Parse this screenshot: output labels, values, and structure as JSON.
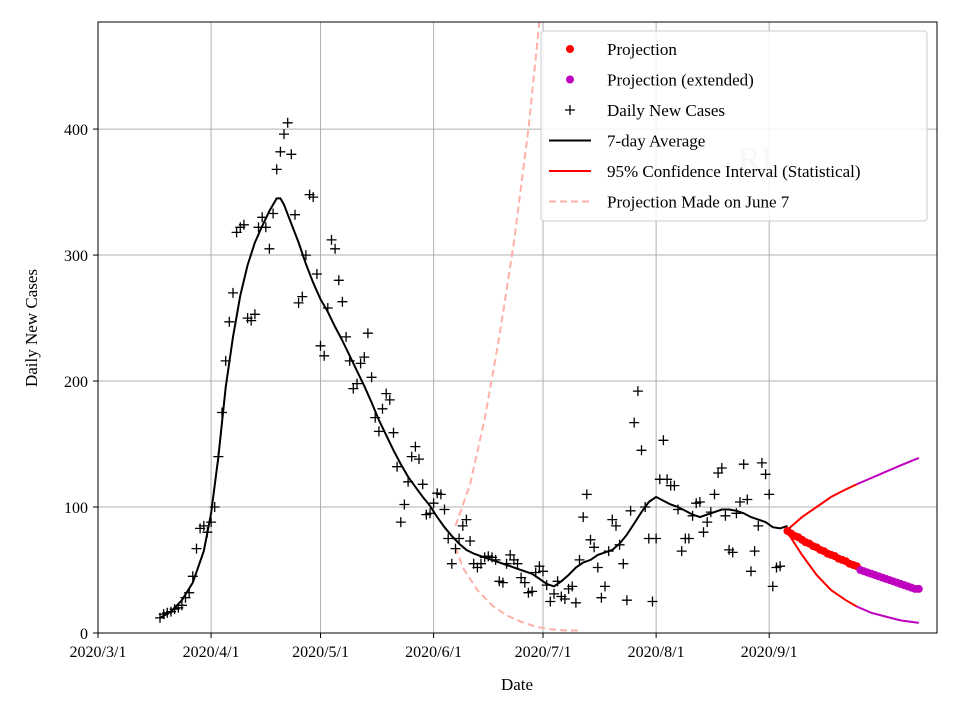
{
  "chart_data": {
    "type": "line",
    "title": "",
    "xlabel": "Date",
    "ylabel": "Daily New Cases",
    "watermark": "RI",
    "grid": true,
    "legend_position": "top-right",
    "x_units": "days since 2020-03-01",
    "xlim": [
      0,
      230
    ],
    "ylim": [
      0,
      485
    ],
    "x_ticks": [
      {
        "x": 0,
        "label": "2020/3/1"
      },
      {
        "x": 31,
        "label": "2020/4/1"
      },
      {
        "x": 61,
        "label": "2020/5/1"
      },
      {
        "x": 92,
        "label": "2020/6/1"
      },
      {
        "x": 122,
        "label": "2020/7/1"
      },
      {
        "x": 153,
        "label": "2020/8/1"
      },
      {
        "x": 184,
        "label": "2020/9/1"
      }
    ],
    "y_ticks": [
      {
        "y": 0,
        "label": "0"
      },
      {
        "y": 100,
        "label": "100"
      },
      {
        "y": 200,
        "label": "200"
      },
      {
        "y": 300,
        "label": "300"
      },
      {
        "y": 400,
        "label": "400"
      }
    ],
    "colors": {
      "projection": "#ff0000",
      "projection_extended": "#bf00bf",
      "daily": "#000000",
      "average": "#000000",
      "ci": "#ff0000",
      "ci_extended": "#bf00bf",
      "june7": "#ffb0a8",
      "grid": "#b0b0b0"
    },
    "legend": [
      {
        "key": "projection",
        "label": "Projection"
      },
      {
        "key": "projection_extended",
        "label": "Projection (extended)"
      },
      {
        "key": "daily",
        "label": "Daily New Cases"
      },
      {
        "key": "average",
        "label": "7-day Average"
      },
      {
        "key": "ci",
        "label": "95% Confidence Interval (Statistical)"
      },
      {
        "key": "june7",
        "label": "Projection Made on June 7"
      }
    ],
    "series": {
      "daily_new_cases": [
        [
          17,
          12
        ],
        [
          18,
          15
        ],
        [
          19,
          16
        ],
        [
          20,
          17
        ],
        [
          21,
          19
        ],
        [
          22,
          20
        ],
        [
          23,
          22
        ],
        [
          24,
          28
        ],
        [
          25,
          32
        ],
        [
          26,
          45
        ],
        [
          27,
          67
        ],
        [
          28,
          83
        ],
        [
          29,
          85
        ],
        [
          30,
          80
        ],
        [
          31,
          88
        ],
        [
          32,
          100
        ],
        [
          33,
          140
        ],
        [
          34,
          175
        ],
        [
          35,
          216
        ],
        [
          36,
          247
        ],
        [
          37,
          270
        ],
        [
          38,
          318
        ],
        [
          39,
          322
        ],
        [
          40,
          324
        ],
        [
          41,
          250
        ],
        [
          42,
          248
        ],
        [
          43,
          253
        ],
        [
          44,
          322
        ],
        [
          45,
          330
        ],
        [
          46,
          322
        ],
        [
          47,
          305
        ],
        [
          48,
          333
        ],
        [
          49,
          368
        ],
        [
          50,
          382
        ],
        [
          51,
          396
        ],
        [
          52,
          405
        ],
        [
          53,
          380
        ],
        [
          54,
          332
        ],
        [
          55,
          262
        ],
        [
          56,
          267
        ],
        [
          57,
          300
        ],
        [
          58,
          348
        ],
        [
          59,
          346
        ],
        [
          60,
          285
        ],
        [
          61,
          228
        ],
        [
          62,
          220
        ],
        [
          63,
          258
        ],
        [
          64,
          312
        ],
        [
          65,
          305
        ],
        [
          66,
          280
        ],
        [
          67,
          263
        ],
        [
          68,
          235
        ],
        [
          69,
          216
        ],
        [
          70,
          194
        ],
        [
          71,
          198
        ],
        [
          72,
          214
        ],
        [
          73,
          219
        ],
        [
          74,
          238
        ],
        [
          75,
          203
        ],
        [
          76,
          171
        ],
        [
          77,
          160
        ],
        [
          78,
          178
        ],
        [
          79,
          190
        ],
        [
          80,
          185
        ],
        [
          81,
          159
        ],
        [
          82,
          132
        ],
        [
          83,
          88
        ],
        [
          84,
          102
        ],
        [
          85,
          120
        ],
        [
          86,
          140
        ],
        [
          87,
          148
        ],
        [
          88,
          138
        ],
        [
          89,
          118
        ],
        [
          90,
          94
        ],
        [
          91,
          95
        ],
        [
          92,
          103
        ],
        [
          93,
          111
        ],
        [
          94,
          110
        ],
        [
          95,
          98
        ],
        [
          96,
          75
        ],
        [
          97,
          55
        ],
        [
          98,
          67
        ],
        [
          99,
          75
        ],
        [
          100,
          85
        ],
        [
          101,
          90
        ],
        [
          102,
          73
        ],
        [
          103,
          55
        ],
        [
          104,
          52
        ],
        [
          105,
          55
        ],
        [
          106,
          60
        ],
        [
          107,
          61
        ],
        [
          108,
          60
        ],
        [
          109,
          58
        ],
        [
          110,
          41
        ],
        [
          111,
          40
        ],
        [
          112,
          55
        ],
        [
          113,
          62
        ],
        [
          114,
          58
        ],
        [
          115,
          55
        ],
        [
          116,
          44
        ],
        [
          117,
          40
        ],
        [
          118,
          32
        ],
        [
          119,
          33
        ],
        [
          120,
          48
        ],
        [
          121,
          53
        ],
        [
          122,
          49
        ],
        [
          123,
          38
        ],
        [
          124,
          25
        ],
        [
          125,
          31
        ],
        [
          126,
          41
        ],
        [
          127,
          29
        ],
        [
          128,
          27
        ],
        [
          129,
          35
        ],
        [
          130,
          37
        ],
        [
          131,
          24
        ],
        [
          132,
          58
        ],
        [
          133,
          92
        ],
        [
          134,
          110
        ],
        [
          135,
          74
        ],
        [
          136,
          68
        ],
        [
          137,
          52
        ],
        [
          138,
          28
        ],
        [
          139,
          37
        ],
        [
          140,
          65
        ],
        [
          141,
          90
        ],
        [
          142,
          85
        ],
        [
          143,
          70
        ],
        [
          144,
          55
        ],
        [
          145,
          26
        ],
        [
          146,
          97
        ],
        [
          147,
          167
        ],
        [
          148,
          192
        ],
        [
          149,
          145
        ],
        [
          150,
          100
        ],
        [
          151,
          75
        ],
        [
          152,
          25
        ],
        [
          153,
          75
        ],
        [
          154,
          122
        ],
        [
          155,
          153
        ],
        [
          156,
          122
        ],
        [
          157,
          117
        ],
        [
          158,
          117
        ],
        [
          159,
          98
        ],
        [
          160,
          65
        ],
        [
          161,
          75
        ],
        [
          162,
          75
        ],
        [
          163,
          93
        ],
        [
          164,
          103
        ],
        [
          165,
          104
        ],
        [
          166,
          80
        ],
        [
          167,
          88
        ],
        [
          168,
          96
        ],
        [
          169,
          110
        ],
        [
          170,
          127
        ],
        [
          171,
          131
        ],
        [
          172,
          93
        ],
        [
          173,
          66
        ],
        [
          174,
          64
        ],
        [
          175,
          95
        ],
        [
          176,
          104
        ],
        [
          177,
          134
        ],
        [
          178,
          106
        ],
        [
          179,
          49
        ],
        [
          180,
          65
        ],
        [
          181,
          85
        ],
        [
          182,
          135
        ],
        [
          183,
          126
        ],
        [
          184,
          110
        ],
        [
          185,
          37
        ],
        [
          186,
          52
        ],
        [
          187,
          53
        ]
      ],
      "seven_day_average": [
        [
          17,
          12
        ],
        [
          20,
          17
        ],
        [
          23,
          26
        ],
        [
          26,
          40
        ],
        [
          29,
          65
        ],
        [
          31,
          95
        ],
        [
          33,
          140
        ],
        [
          35,
          195
        ],
        [
          37,
          235
        ],
        [
          39,
          268
        ],
        [
          41,
          292
        ],
        [
          43,
          310
        ],
        [
          45,
          323
        ],
        [
          47,
          335
        ],
        [
          49,
          345
        ],
        [
          50,
          345
        ],
        [
          51,
          340
        ],
        [
          53,
          325
        ],
        [
          55,
          310
        ],
        [
          57,
          293
        ],
        [
          59,
          278
        ],
        [
          61,
          265
        ],
        [
          63,
          255
        ],
        [
          65,
          243
        ],
        [
          67,
          232
        ],
        [
          69,
          220
        ],
        [
          71,
          208
        ],
        [
          73,
          196
        ],
        [
          75,
          183
        ],
        [
          77,
          169
        ],
        [
          79,
          157
        ],
        [
          81,
          145
        ],
        [
          83,
          134
        ],
        [
          85,
          124
        ],
        [
          87,
          116
        ],
        [
          89,
          108
        ],
        [
          91,
          101
        ],
        [
          93,
          92
        ],
        [
          95,
          84
        ],
        [
          97,
          77
        ],
        [
          99,
          71
        ],
        [
          101,
          66
        ],
        [
          103,
          63
        ],
        [
          105,
          61
        ],
        [
          107,
          59
        ],
        [
          109,
          57
        ],
        [
          111,
          55
        ],
        [
          113,
          53
        ],
        [
          115,
          51
        ],
        [
          117,
          49
        ],
        [
          119,
          47
        ],
        [
          121,
          43
        ],
        [
          123,
          39
        ],
        [
          125,
          37
        ],
        [
          127,
          41
        ],
        [
          129,
          46
        ],
        [
          131,
          52
        ],
        [
          133,
          56
        ],
        [
          135,
          58
        ],
        [
          137,
          62
        ],
        [
          139,
          64
        ],
        [
          141,
          66
        ],
        [
          143,
          71
        ],
        [
          145,
          78
        ],
        [
          147,
          87
        ],
        [
          149,
          96
        ],
        [
          151,
          104
        ],
        [
          153,
          108
        ],
        [
          155,
          105
        ],
        [
          157,
          102
        ],
        [
          159,
          100
        ],
        [
          161,
          97
        ],
        [
          163,
          94
        ],
        [
          165,
          92
        ],
        [
          167,
          94
        ],
        [
          169,
          96
        ],
        [
          171,
          98
        ],
        [
          173,
          98
        ],
        [
          175,
          97
        ],
        [
          177,
          95
        ],
        [
          179,
          92
        ],
        [
          181,
          90
        ],
        [
          183,
          88
        ],
        [
          185,
          84
        ],
        [
          187,
          83
        ],
        [
          189,
          85
        ]
      ],
      "projection": [
        [
          189,
          81
        ],
        [
          190,
          79
        ],
        [
          191,
          77
        ],
        [
          192,
          76
        ],
        [
          193,
          74
        ],
        [
          194,
          72
        ],
        [
          195,
          71
        ],
        [
          196,
          69
        ],
        [
          197,
          68
        ],
        [
          198,
          66
        ],
        [
          199,
          65
        ],
        [
          200,
          63
        ],
        [
          201,
          62
        ],
        [
          202,
          61
        ],
        [
          203,
          59
        ],
        [
          204,
          58
        ],
        [
          205,
          57
        ],
        [
          206,
          55
        ],
        [
          207,
          54
        ],
        [
          208,
          53
        ]
      ],
      "projection_extended": [
        [
          209,
          50
        ],
        [
          210,
          49
        ],
        [
          211,
          48
        ],
        [
          212,
          47
        ],
        [
          213,
          46
        ],
        [
          214,
          45
        ],
        [
          215,
          44
        ],
        [
          216,
          43
        ],
        [
          217,
          42
        ],
        [
          218,
          41
        ],
        [
          219,
          40
        ],
        [
          220,
          39
        ],
        [
          221,
          38
        ],
        [
          222,
          37
        ],
        [
          223,
          36
        ],
        [
          224,
          35
        ],
        [
          225,
          35
        ]
      ],
      "ci_upper": [
        [
          189,
          82
        ],
        [
          193,
          92
        ],
        [
          197,
          100
        ],
        [
          201,
          108
        ],
        [
          205,
          114
        ],
        [
          208,
          118
        ]
      ],
      "ci_upper_extended": [
        [
          208,
          118
        ],
        [
          212,
          123
        ],
        [
          216,
          128
        ],
        [
          220,
          133
        ],
        [
          225,
          139
        ]
      ],
      "ci_lower": [
        [
          189,
          80
        ],
        [
          193,
          62
        ],
        [
          197,
          46
        ],
        [
          201,
          34
        ],
        [
          205,
          26
        ],
        [
          208,
          21
        ]
      ],
      "ci_lower_extended": [
        [
          208,
          21
        ],
        [
          212,
          16
        ],
        [
          216,
          13
        ],
        [
          220,
          10
        ],
        [
          225,
          8
        ]
      ],
      "june7_projection_upper": [
        [
          98,
          85
        ],
        [
          102,
          118
        ],
        [
          106,
          170
        ],
        [
          110,
          235
        ],
        [
          114,
          310
        ],
        [
          118,
          400
        ],
        [
          121,
          485
        ]
      ],
      "june7_projection_lower": [
        [
          98,
          68
        ],
        [
          100,
          52
        ],
        [
          104,
          34
        ],
        [
          108,
          22
        ],
        [
          112,
          14
        ],
        [
          116,
          9
        ],
        [
          120,
          5
        ],
        [
          124,
          3
        ],
        [
          128,
          2
        ],
        [
          132,
          2
        ]
      ]
    }
  }
}
